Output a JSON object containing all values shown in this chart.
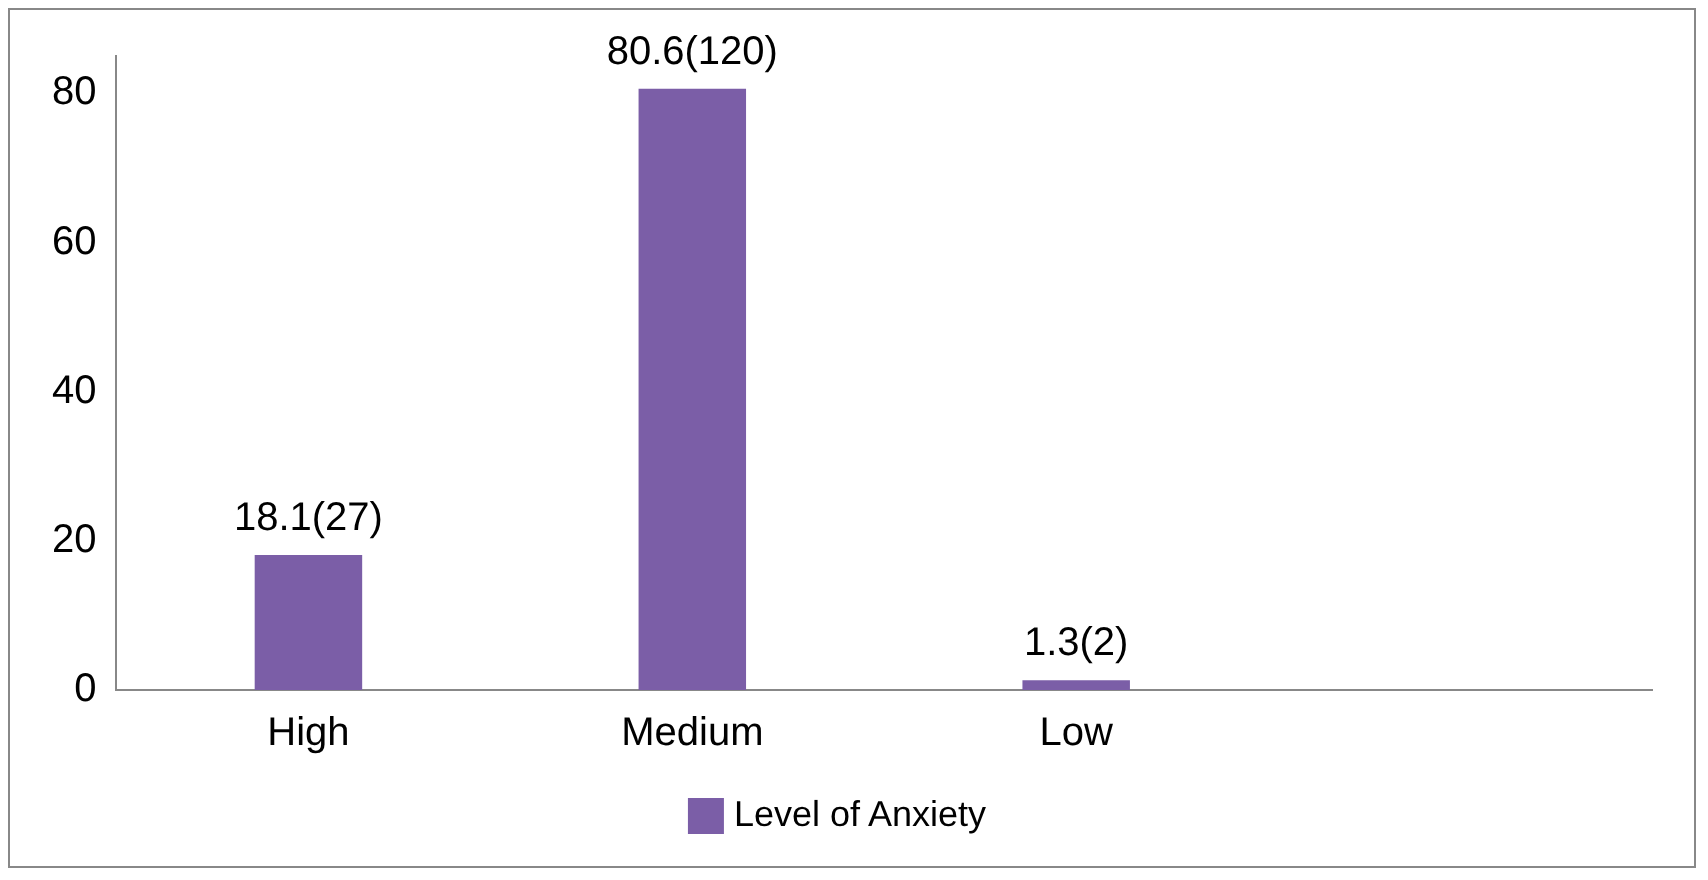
{
  "chart_data": {
    "type": "bar",
    "categories": [
      "High",
      "Medium",
      "Low",
      null
    ],
    "series": [
      {
        "name": "Level of Anxiety",
        "color": "#7b5ea7",
        "values": [
          18.1,
          80.6,
          1.3,
          null
        ],
        "value_labels": [
          "18.1(27)",
          "80.6(120)",
          "1.3(2)",
          null
        ]
      }
    ],
    "ylim": [
      0,
      85
    ],
    "yticks": [
      0,
      20,
      40,
      60,
      80
    ],
    "grid": false,
    "legend": "bottom"
  }
}
